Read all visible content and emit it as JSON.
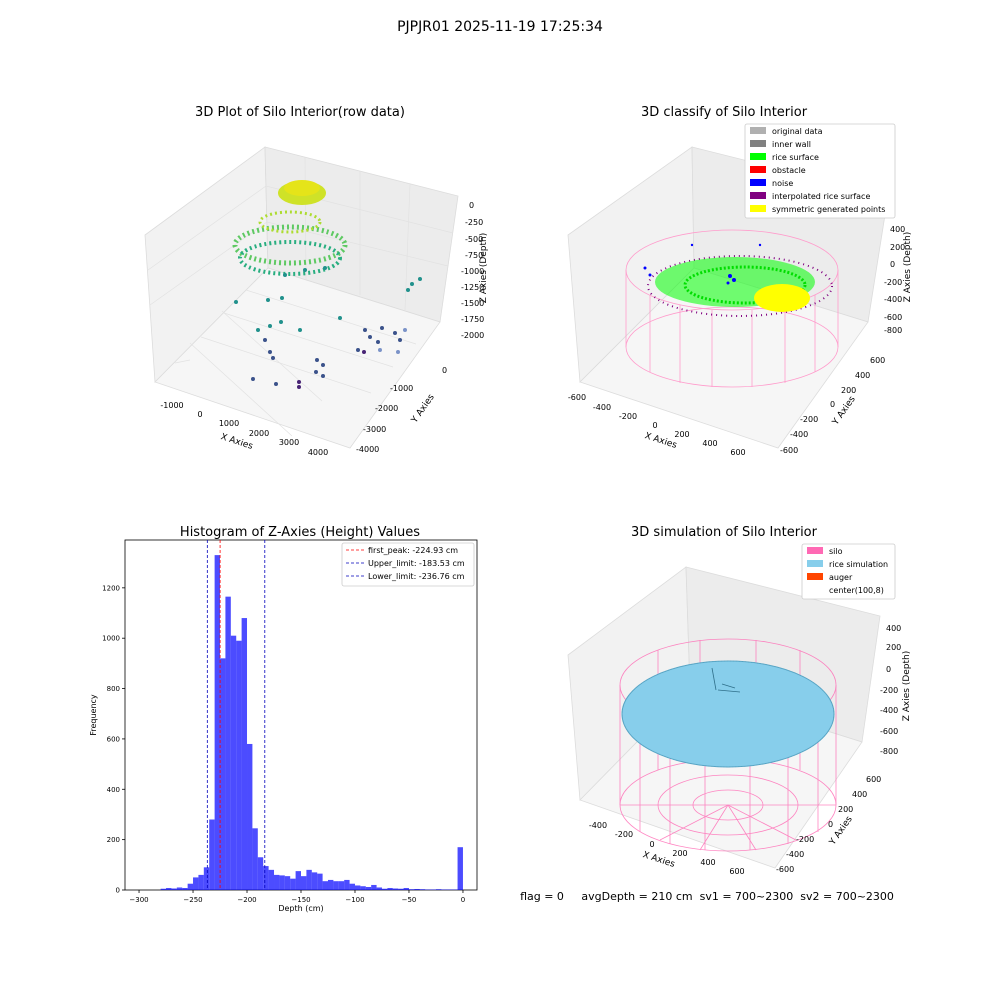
{
  "figure": {
    "suptitle": "PJPJR01 2025-11-19 17:25:34",
    "status_line": "flag = 0     avgDepth = 210 cm  sv1 = 700~2300  sv2 = 700~2300"
  },
  "panels": {
    "raw": {
      "title": "3D Plot of Silo Interior(row data)",
      "xlabel": "X Axies",
      "ylabel": "Y Axies",
      "zlabel": "Z Axies (Depth)",
      "xticks": [
        "-1000",
        "0",
        "1000",
        "2000",
        "3000",
        "4000"
      ],
      "yticks": [
        "0",
        "-1000",
        "-2000",
        "-3000",
        "-4000"
      ],
      "zticks": [
        "0",
        "-250",
        "-500",
        "-750",
        "-1000",
        "-1250",
        "-1500",
        "-1750",
        "-2000"
      ]
    },
    "classify": {
      "title": "3D classify of Silo Interior",
      "xlabel": "X Axies",
      "ylabel": "Y Axies",
      "zlabel": "Z Axies (Depth)",
      "xticks": [
        "-600",
        "-400",
        "-200",
        "0",
        "200",
        "400",
        "600"
      ],
      "yticks": [
        "600",
        "400",
        "200",
        "0",
        "-200",
        "-400",
        "-600"
      ],
      "zticks": [
        "400",
        "200",
        "0",
        "-200",
        "-400",
        "-600",
        "-800"
      ],
      "legend": [
        {
          "label": "original data",
          "color": "#b0b0b0"
        },
        {
          "label": "inner wall",
          "color": "#808080"
        },
        {
          "label": "rice surface",
          "color": "#00ff00"
        },
        {
          "label": "obstacle",
          "color": "#ff0000"
        },
        {
          "label": "noise",
          "color": "#0000ff"
        },
        {
          "label": "interpolated rice surface",
          "color": "#800080"
        },
        {
          "label": "symmetric generated points",
          "color": "#ffff00"
        }
      ]
    },
    "simulation": {
      "title": "3D simulation of Silo Interior",
      "xlabel": "X Axies",
      "ylabel": "Y Axies",
      "zlabel": "Z Axies (Depth)",
      "xticks": [
        "-400",
        "-200",
        "0",
        "200",
        "400",
        "600"
      ],
      "yticks": [
        "600",
        "400",
        "200",
        "0",
        "-200",
        "-400",
        "-600"
      ],
      "zticks": [
        "400",
        "200",
        "0",
        "-200",
        "-400",
        "-600",
        "-800"
      ],
      "legend": [
        {
          "label": "silo",
          "color": "#ff69b4"
        },
        {
          "label": "rice simulation",
          "color": "#87ceeb"
        },
        {
          "label": "auger",
          "color": "#ff4500"
        },
        {
          "label": "center(100,8)",
          "color": "none"
        }
      ]
    }
  },
  "chart_data": {
    "type": "bar",
    "title": "Histogram of Z-Axies (Height) Values",
    "xlabel": "Depth (cm)",
    "ylabel": "Frequency",
    "xlim": [
      -313,
      13
    ],
    "ylim": [
      0,
      1390
    ],
    "xticks": [
      -300,
      -250,
      -200,
      -150,
      -100,
      -50,
      0
    ],
    "yticks": [
      0,
      200,
      400,
      600,
      800,
      1000,
      1200
    ],
    "bar_color": "#0000ff",
    "bins": [
      {
        "x0": -280,
        "x1": -275,
        "value": 5
      },
      {
        "x0": -275,
        "x1": -270,
        "value": 8
      },
      {
        "x0": -270,
        "x1": -265,
        "value": 6
      },
      {
        "x0": -265,
        "x1": -260,
        "value": 10
      },
      {
        "x0": -260,
        "x1": -255,
        "value": 8
      },
      {
        "x0": -255,
        "x1": -250,
        "value": 25
      },
      {
        "x0": -250,
        "x1": -245,
        "value": 50
      },
      {
        "x0": -245,
        "x1": -240,
        "value": 60
      },
      {
        "x0": -240,
        "x1": -235,
        "value": 90
      },
      {
        "x0": -235,
        "x1": -230,
        "value": 280
      },
      {
        "x0": -230,
        "x1": -225,
        "value": 1330
      },
      {
        "x0": -225,
        "x1": -220,
        "value": 920
      },
      {
        "x0": -220,
        "x1": -215,
        "value": 1165
      },
      {
        "x0": -215,
        "x1": -210,
        "value": 1010
      },
      {
        "x0": -210,
        "x1": -205,
        "value": 990
      },
      {
        "x0": -205,
        "x1": -200,
        "value": 1080
      },
      {
        "x0": -200,
        "x1": -195,
        "value": 580
      },
      {
        "x0": -195,
        "x1": -190,
        "value": 245
      },
      {
        "x0": -190,
        "x1": -185,
        "value": 130
      },
      {
        "x0": -185,
        "x1": -180,
        "value": 95
      },
      {
        "x0": -180,
        "x1": -175,
        "value": 80
      },
      {
        "x0": -175,
        "x1": -170,
        "value": 60
      },
      {
        "x0": -170,
        "x1": -165,
        "value": 58
      },
      {
        "x0": -165,
        "x1": -160,
        "value": 55
      },
      {
        "x0": -160,
        "x1": -155,
        "value": 45
      },
      {
        "x0": -155,
        "x1": -150,
        "value": 75
      },
      {
        "x0": -150,
        "x1": -145,
        "value": 55
      },
      {
        "x0": -145,
        "x1": -140,
        "value": 80
      },
      {
        "x0": -140,
        "x1": -135,
        "value": 70
      },
      {
        "x0": -135,
        "x1": -130,
        "value": 65
      },
      {
        "x0": -130,
        "x1": -125,
        "value": 35
      },
      {
        "x0": -125,
        "x1": -120,
        "value": 40
      },
      {
        "x0": -120,
        "x1": -115,
        "value": 35
      },
      {
        "x0": -115,
        "x1": -110,
        "value": 35
      },
      {
        "x0": -110,
        "x1": -105,
        "value": 40
      },
      {
        "x0": -105,
        "x1": -100,
        "value": 25
      },
      {
        "x0": -100,
        "x1": -95,
        "value": 18
      },
      {
        "x0": -95,
        "x1": -90,
        "value": 15
      },
      {
        "x0": -90,
        "x1": -85,
        "value": 12
      },
      {
        "x0": -85,
        "x1": -80,
        "value": 20
      },
      {
        "x0": -80,
        "x1": -75,
        "value": 10
      },
      {
        "x0": -75,
        "x1": -70,
        "value": 5
      },
      {
        "x0": -70,
        "x1": -65,
        "value": 8
      },
      {
        "x0": -65,
        "x1": -60,
        "value": 6
      },
      {
        "x0": -60,
        "x1": -55,
        "value": 5
      },
      {
        "x0": -55,
        "x1": -50,
        "value": 8
      },
      {
        "x0": -50,
        "x1": -45,
        "value": 3
      },
      {
        "x0": -45,
        "x1": -40,
        "value": 4
      },
      {
        "x0": -40,
        "x1": -35,
        "value": 3
      },
      {
        "x0": -35,
        "x1": -30,
        "value": 2
      },
      {
        "x0": -30,
        "x1": -25,
        "value": 2
      },
      {
        "x0": -25,
        "x1": -20,
        "value": 3
      },
      {
        "x0": -20,
        "x1": -15,
        "value": 2
      },
      {
        "x0": -15,
        "x1": -10,
        "value": 2
      },
      {
        "x0": -10,
        "x1": -5,
        "value": 2
      },
      {
        "x0": -5,
        "x1": 0,
        "value": 170
      }
    ],
    "vlines": [
      {
        "x": -224.93,
        "color": "#ff0000",
        "label": "first_peak: -224.93 cm"
      },
      {
        "x": -183.53,
        "color": "#0000bb",
        "label": "Upper_limit: -183.53 cm"
      },
      {
        "x": -236.76,
        "color": "#0000bb",
        "label": "Lower_limit: -236.76 cm"
      }
    ],
    "legend_position": "upper right"
  }
}
